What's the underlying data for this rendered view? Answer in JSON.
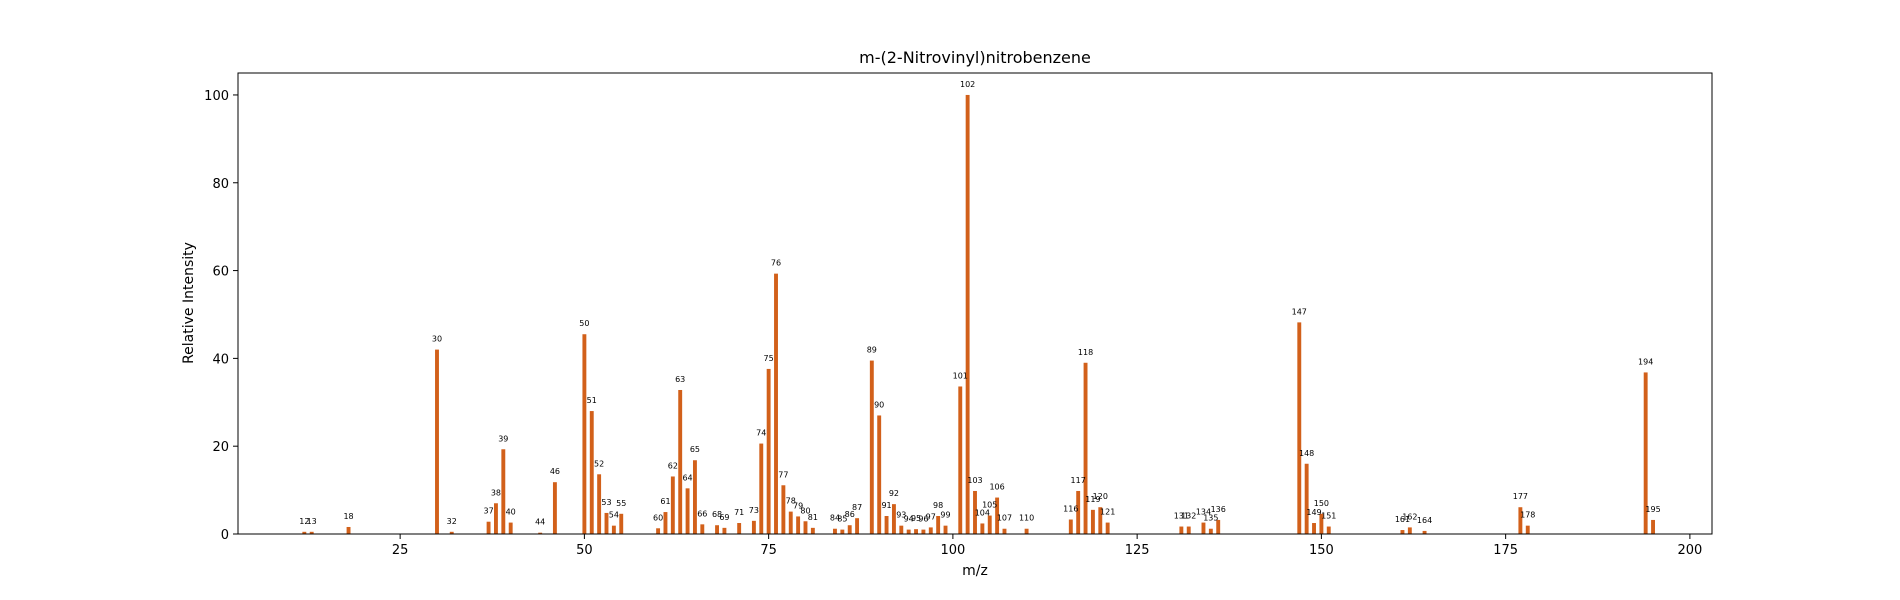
{
  "chart_data": {
    "type": "bar",
    "title": "m-(2-Nitrovinyl)nitrobenzene",
    "xlabel": "m/z",
    "ylabel": "Relative Intensity",
    "xlim": [
      3,
      203
    ],
    "ylim": [
      0,
      105
    ],
    "x_ticks": [
      25,
      50,
      75,
      100,
      125,
      150,
      175,
      200
    ],
    "y_ticks": [
      0,
      20,
      40,
      60,
      80,
      100
    ],
    "grid": false,
    "bar_color": "#d2601a",
    "x": [
      12,
      13,
      18,
      30,
      32,
      37,
      38,
      39,
      40,
      44,
      46,
      50,
      51,
      52,
      53,
      54,
      55,
      60,
      61,
      62,
      63,
      64,
      65,
      66,
      68,
      69,
      71,
      73,
      74,
      75,
      76,
      77,
      78,
      79,
      80,
      81,
      84,
      85,
      86,
      87,
      89,
      90,
      91,
      92,
      93,
      94,
      95,
      96,
      97,
      98,
      99,
      101,
      102,
      103,
      104,
      105,
      106,
      107,
      110,
      116,
      117,
      118,
      119,
      120,
      121,
      131,
      132,
      134,
      135,
      136,
      147,
      148,
      149,
      150,
      151,
      161,
      162,
      164,
      177,
      178,
      194,
      195
    ],
    "values": [
      0.5,
      0.5,
      1.6,
      42,
      0.5,
      2.8,
      7,
      19.3,
      2.6,
      0.3,
      11.8,
      45.5,
      28,
      13.6,
      4.8,
      1.9,
      4.6,
      1.3,
      5,
      13.1,
      32.8,
      10.4,
      16.8,
      2.2,
      2,
      1.4,
      2.5,
      3,
      20.6,
      37.6,
      59.3,
      11.1,
      5.1,
      4,
      2.9,
      1.4,
      1.2,
      1,
      2,
      3.6,
      39.5,
      27,
      4.1,
      6.8,
      1.9,
      1,
      1.1,
      1,
      1.5,
      4.1,
      1.9,
      33.6,
      100,
      9.8,
      2.4,
      4.2,
      8.3,
      1.2,
      1.2,
      3.3,
      9.8,
      39,
      5.5,
      6.1,
      2.6,
      1.7,
      1.7,
      2.6,
      1.2,
      3.2,
      48.2,
      16,
      2.5,
      4.6,
      1.7,
      0.9,
      1.5,
      0.7,
      6.1,
      1.9,
      36.8,
      3.2
    ]
  }
}
